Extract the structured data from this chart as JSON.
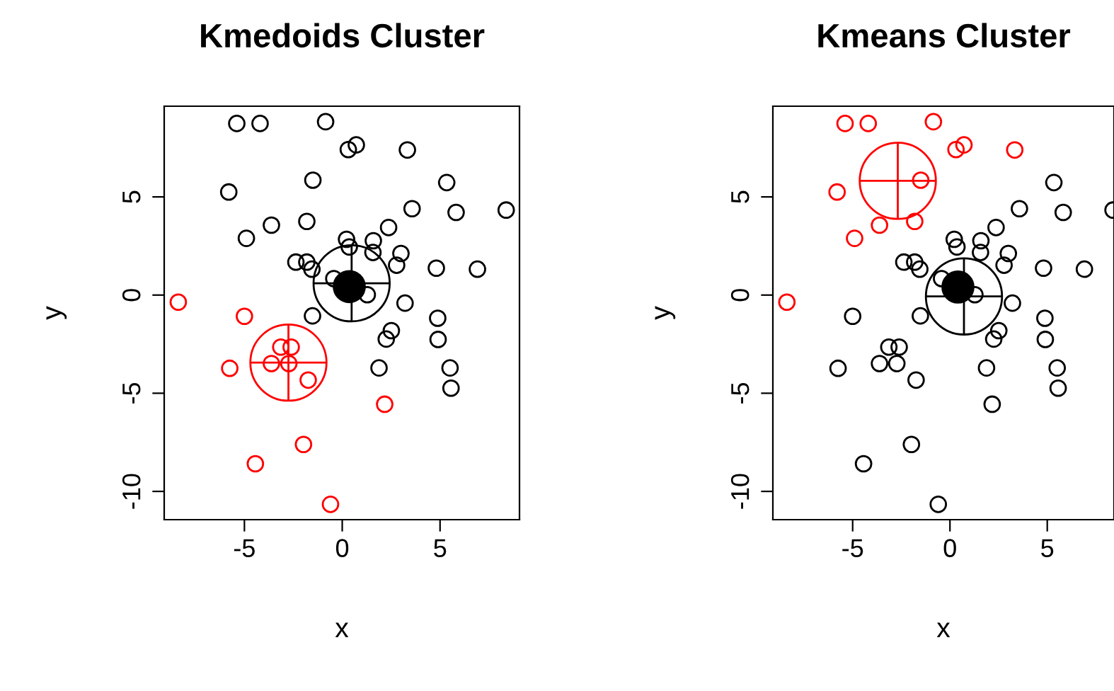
{
  "chart_data": [
    {
      "type": "scatter",
      "title": "Kmedoids Cluster",
      "xlabel": "x",
      "ylabel": "y",
      "xlim": [
        -9.1,
        9.06
      ],
      "ylim": [
        -11.44,
        9.62
      ],
      "xticks": [
        -5,
        0,
        5
      ],
      "yticks": [
        -10,
        -5,
        0,
        5
      ],
      "grid": false,
      "legend": false,
      "series": [
        {
          "marker": "circle",
          "color": "#000000",
          "x": [
            -5.39,
            -4.2,
            -0.85,
            0.31,
            0.72,
            3.33,
            -1.5,
            5.34,
            -5.8,
            3.57,
            5.82,
            8.38,
            -3.62,
            -1.81,
            -4.9,
            2.37,
            0.22,
            0.36,
            1.59,
            1.57,
            3.0,
            2.78,
            -2.37,
            -1.81,
            -1.55,
            4.81,
            6.91,
            -0.43,
            1.28,
            3.21,
            -1.52,
            4.88,
            2.51,
            2.25,
            4.9,
            1.88,
            5.51,
            5.56
          ],
          "values": [
            8.74,
            8.74,
            8.83,
            7.41,
            7.65,
            7.39,
            5.85,
            5.73,
            5.25,
            4.4,
            4.21,
            4.33,
            3.56,
            3.75,
            2.89,
            3.44,
            2.84,
            2.45,
            2.77,
            2.17,
            2.12,
            1.52,
            1.68,
            1.68,
            1.32,
            1.37,
            1.32,
            0.84,
            0.02,
            -0.41,
            -1.06,
            -1.18,
            -1.81,
            -2.24,
            -2.26,
            -3.71,
            -3.71,
            -4.74
          ]
        },
        {
          "marker": "circle",
          "color": "#ff0000",
          "x": [
            -8.38,
            -5.0,
            -3.14,
            -2.61,
            -3.62,
            -2.73,
            -5.75,
            -1.74,
            2.17,
            -1.98,
            -4.44,
            -0.6
          ],
          "values": [
            -0.36,
            -1.08,
            -2.65,
            -2.65,
            -3.49,
            -3.49,
            -3.73,
            -4.33,
            -5.56,
            -7.61,
            -8.59,
            -10.66
          ]
        },
        {
          "type": "bubble",
          "color": "#000000",
          "x": [
            0.48
          ],
          "values": [
            0.6
          ],
          "sizes": [
            1
          ]
        },
        {
          "type": "bubble",
          "color": "#ff0000",
          "x": [
            -2.75
          ],
          "values": [
            -3.44
          ],
          "sizes": [
            1
          ]
        },
        {
          "color": "#000000",
          "x": [
            0.36
          ],
          "values": [
            0.43
          ]
        }
      ]
    },
    {
      "type": "scatter",
      "title": "Kmeans Cluster",
      "xlabel": "x",
      "ylabel": "y",
      "xlim": [
        -9.1,
        8.43
      ],
      "ylim": [
        -11.44,
        9.62
      ],
      "xticks": [
        -5,
        0,
        5
      ],
      "yticks": [
        -10,
        -5,
        0,
        5
      ],
      "grid": false,
      "legend": false,
      "series": [
        {
          "marker": "circle",
          "color": "#000000",
          "x": [
            5.34,
            3.57,
            5.82,
            8.38,
            2.37,
            0.22,
            0.36,
            1.59,
            1.57,
            3.0,
            2.78,
            -2.37,
            -1.81,
            -1.55,
            4.81,
            6.91,
            -0.43,
            1.28,
            3.21,
            -1.52,
            4.88,
            2.51,
            2.25,
            4.9,
            1.88,
            5.51,
            5.56,
            -5.0,
            -3.14,
            -2.61,
            -3.62,
            -2.73,
            -5.75,
            -1.74,
            2.17,
            -1.98,
            -4.44,
            -0.6
          ],
          "values": [
            5.73,
            4.4,
            4.21,
            4.33,
            3.44,
            2.84,
            2.45,
            2.77,
            2.17,
            2.12,
            1.52,
            1.68,
            1.68,
            1.32,
            1.37,
            1.32,
            0.84,
            0.02,
            -0.41,
            -1.06,
            -1.18,
            -1.81,
            -2.24,
            -2.26,
            -3.71,
            -3.71,
            -4.74,
            -1.08,
            -2.65,
            -2.65,
            -3.49,
            -3.49,
            -3.73,
            -4.33,
            -5.56,
            -7.61,
            -8.59,
            -10.66
          ]
        },
        {
          "marker": "circle",
          "color": "#ff0000",
          "x": [
            -5.39,
            -4.2,
            -0.85,
            0.31,
            0.72,
            3.33,
            -1.5,
            -5.8,
            -3.62,
            -1.81,
            -4.9,
            -8.38
          ],
          "values": [
            8.74,
            8.74,
            8.83,
            7.41,
            7.65,
            7.39,
            5.85,
            5.25,
            3.56,
            3.75,
            2.89,
            -0.36
          ]
        },
        {
          "type": "bubble",
          "color": "#000000",
          "x": [
            0.72
          ],
          "values": [
            -0.07
          ],
          "sizes": [
            1
          ]
        },
        {
          "type": "bubble",
          "color": "#ff0000",
          "x": [
            -2.68
          ],
          "values": [
            5.82
          ],
          "sizes": [
            1
          ]
        },
        {
          "color": "#000000",
          "x": [
            0.41
          ],
          "values": [
            0.41
          ]
        }
      ]
    }
  ]
}
